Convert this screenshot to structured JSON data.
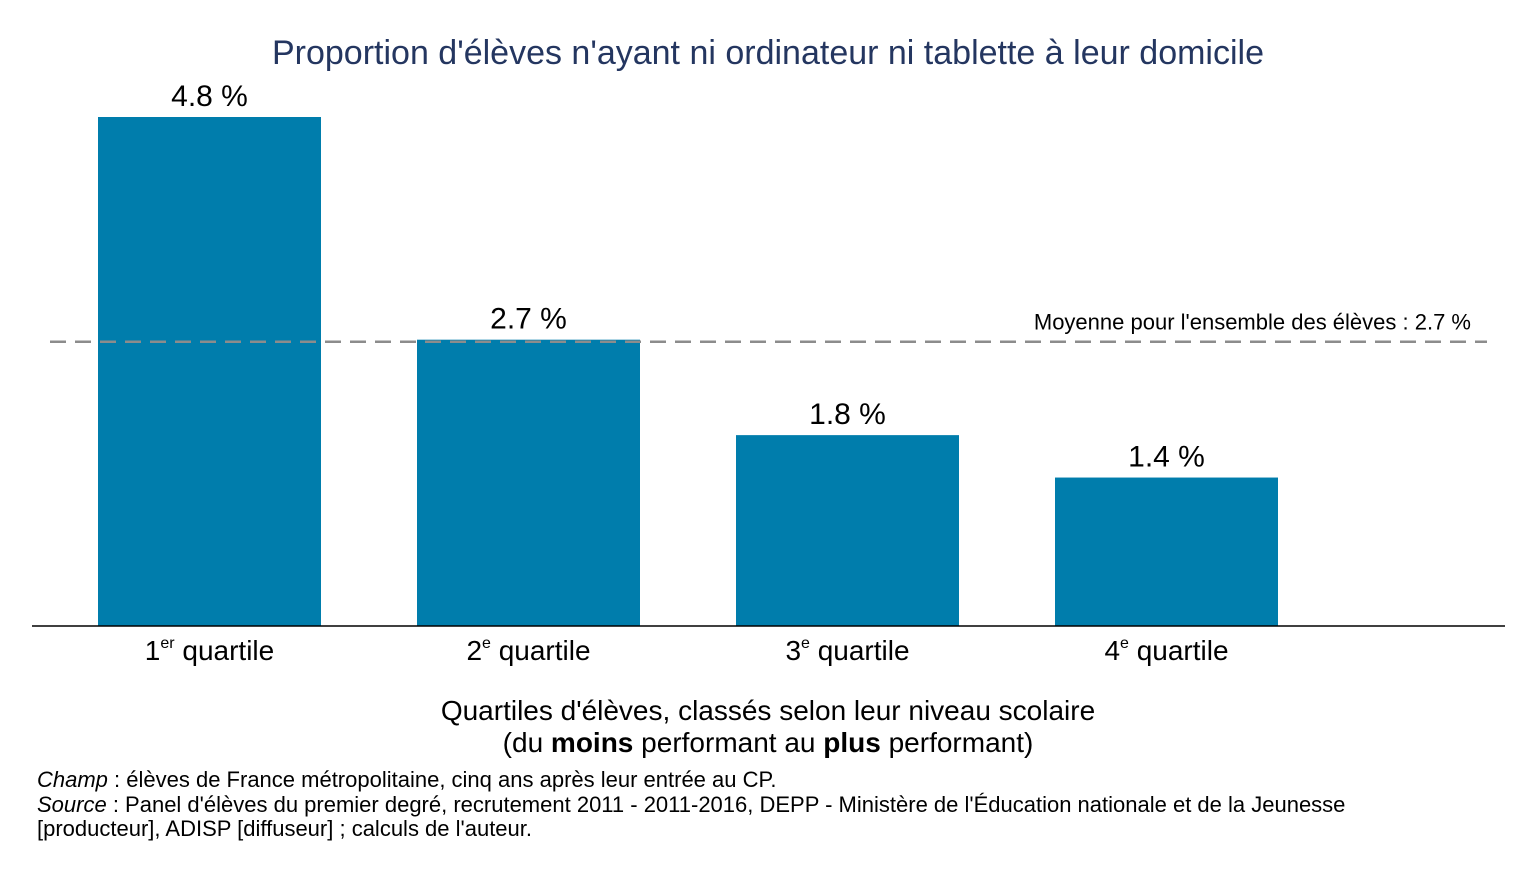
{
  "chart_data": {
    "type": "bar",
    "title": "Proportion d'élèves n'ayant ni ordinateur ni tablette à leur domicile",
    "categories": [
      {
        "num": "1",
        "sup": "er",
        "text": "quartile"
      },
      {
        "num": "2",
        "sup": "e",
        "text": "quartile"
      },
      {
        "num": "3",
        "sup": "e",
        "text": "quartile"
      },
      {
        "num": "4",
        "sup": "e",
        "text": "quartile"
      }
    ],
    "values": [
      4.8,
      2.7,
      1.8,
      1.4
    ],
    "data_labels": [
      "4.8 %",
      "2.7 %",
      "1.8 %",
      "1.4 %"
    ],
    "ylim": [
      0,
      4.8
    ],
    "grid": false,
    "reference_line": {
      "value": 2.7,
      "label": "Moyenne pour l'ensemble des élèves : 2.7 %",
      "style": "dashed",
      "color": "#8c8c8c"
    },
    "xlabel_line1": "Quartiles d'élèves, classés selon leur niveau scolaire",
    "xlabel_line2": [
      {
        "text": "(du ",
        "bold": false
      },
      {
        "text": "moins",
        "bold": true
      },
      {
        "text": " performant au ",
        "bold": false
      },
      {
        "text": "plus",
        "bold": true
      },
      {
        "text": " performant)",
        "bold": false
      }
    ],
    "colors": {
      "bar": "#007dac",
      "title": "#243660",
      "text": "#000000"
    }
  },
  "footnotes": {
    "champ_label": "Champ",
    "champ_text": " : élèves de France métropolitaine, cinq ans après leur entrée au CP.",
    "source_label": "Source",
    "source_text": " : Panel d'élèves du premier degré, recrutement 2011 - 2011-2016, DEPP - Ministère de l'Éducation nationale et de la Jeunesse",
    "source_text2": "[producteur], ADISP [diffuseur] ; calculs de l'auteur."
  }
}
